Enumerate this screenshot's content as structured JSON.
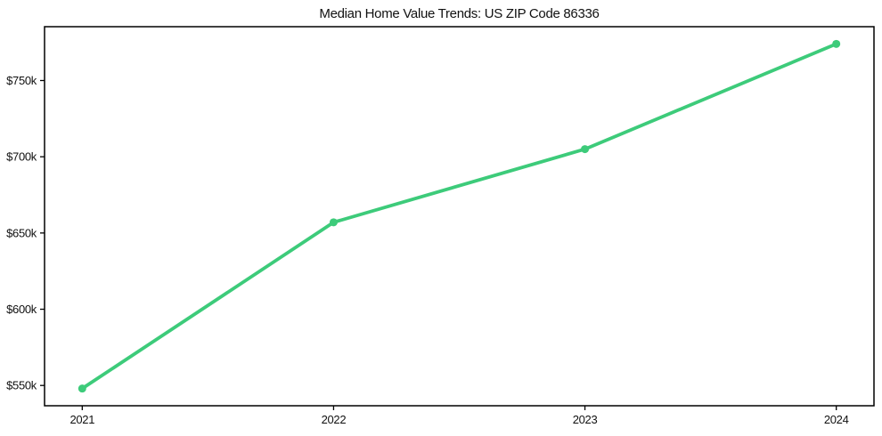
{
  "figure": {
    "title": "Median Home Value Trends: US ZIP Code 86336"
  },
  "chart_data": {
    "type": "line",
    "title": "Median Home Value Trends: US ZIP Code 86336",
    "xlabel": "",
    "ylabel": "",
    "categories": [
      2021,
      2022,
      2023,
      2024
    ],
    "series": [
      {
        "name": "Median Home Value",
        "x": [
          2021,
          2022,
          2023,
          2024
        ],
        "y": [
          548000,
          657000,
          705000,
          774000
        ],
        "color": "#3dcb7a",
        "marker": "circle",
        "marker_radius": 4.5,
        "line_width": 3.8
      }
    ],
    "x_ticks": [
      {
        "value": 2021,
        "label": "2021"
      },
      {
        "value": 2022,
        "label": "2022"
      },
      {
        "value": 2023,
        "label": "2023"
      },
      {
        "value": 2024,
        "label": "2024"
      }
    ],
    "y_ticks": [
      {
        "value": 550000,
        "label": "$550k"
      },
      {
        "value": 600000,
        "label": "$600k"
      },
      {
        "value": 650000,
        "label": "$650k"
      },
      {
        "value": 700000,
        "label": "$700k"
      },
      {
        "value": 750000,
        "label": "$750k"
      }
    ],
    "xlim": [
      2020.85,
      2024.15
    ],
    "ylim": [
      536700,
      785300
    ],
    "grid": false,
    "legend": null,
    "axis_color": "#000000",
    "text_color": "#111111",
    "background": "#ffffff"
  }
}
